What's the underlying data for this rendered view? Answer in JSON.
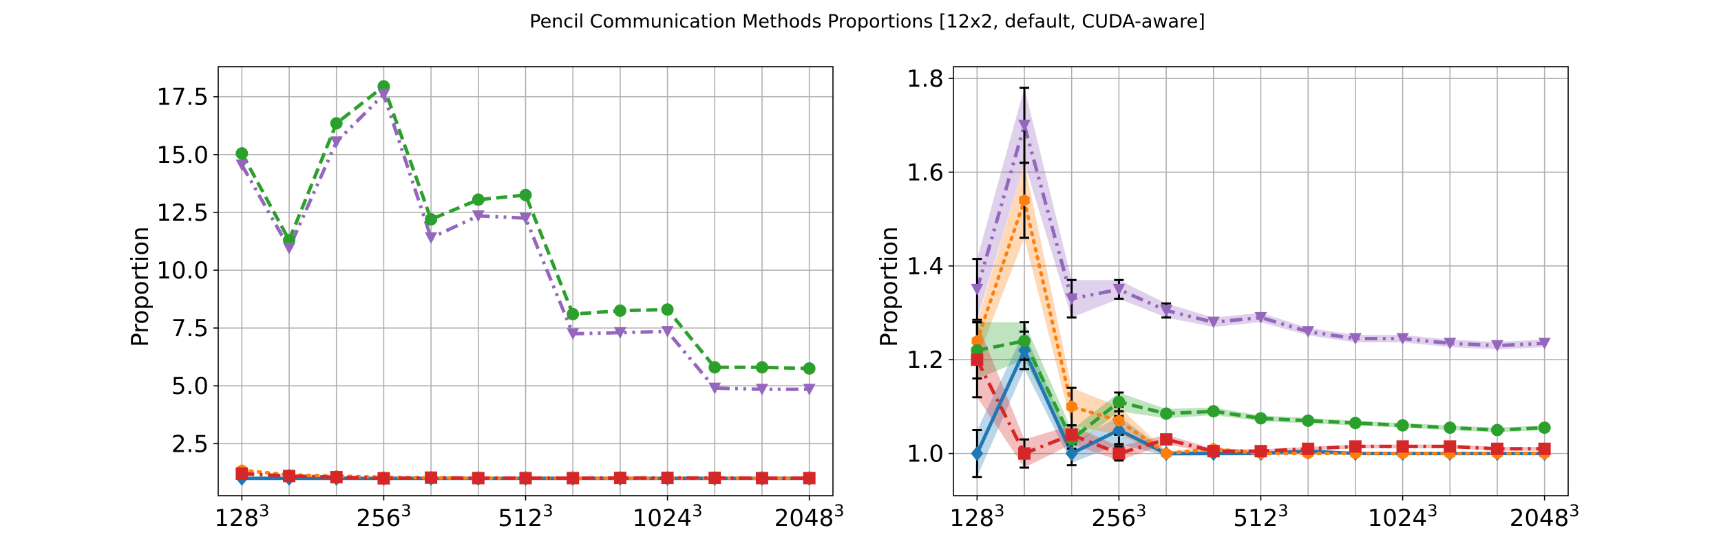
{
  "title": "Pencil Communication Methods Proportions [12x2, default, CUDA-aware]",
  "chart_data": [
    {
      "type": "line",
      "xlabel": "",
      "ylabel": "Proportion",
      "x": [
        1,
        2,
        3,
        4,
        5,
        6,
        7,
        8,
        9,
        10,
        11,
        12,
        13
      ],
      "x_ticks": [
        {
          "x": 1,
          "base": "128",
          "exp": "3"
        },
        {
          "x": 4,
          "base": "256",
          "exp": "3"
        },
        {
          "x": 7,
          "base": "512",
          "exp": "3"
        },
        {
          "x": 10,
          "base": "1024",
          "exp": "3"
        },
        {
          "x": 13,
          "base": "2048",
          "exp": "3"
        }
      ],
      "xlim": [
        0.5,
        13.5
      ],
      "ylim": [
        0.25,
        18.8
      ],
      "y_ticks": [
        "2.5",
        "5.0",
        "7.5",
        "10.0",
        "12.5",
        "15.0",
        "17.5"
      ],
      "grid": true,
      "series": [
        {
          "color": "#1f77b4",
          "linestyle": "solid",
          "marker": "diamond",
          "values": [
            1.0,
            1.0,
            1.0,
            1.0,
            1.0,
            1.0,
            1.0,
            1.0,
            1.0,
            1.0,
            1.0,
            1.0,
            1.0
          ]
        },
        {
          "color": "#ff7f0e",
          "linestyle": "dotted",
          "marker": "hexagon",
          "values": [
            1.35,
            1.15,
            1.1,
            1.05,
            1.02,
            1.01,
            1.0,
            1.0,
            1.0,
            1.0,
            1.0,
            1.0,
            1.0
          ]
        },
        {
          "color": "#2ca02c",
          "linestyle": "dashed",
          "marker": "circle",
          "values": [
            15.05,
            11.3,
            16.35,
            17.95,
            12.2,
            13.05,
            13.25,
            8.1,
            8.25,
            8.3,
            5.8,
            5.8,
            5.75
          ]
        },
        {
          "color": "#d62728",
          "linestyle": "dashdot",
          "marker": "square",
          "values": [
            1.2,
            1.1,
            1.05,
            1.0,
            1.03,
            1.01,
            1.01,
            1.01,
            1.02,
            1.02,
            1.02,
            1.01,
            1.01
          ]
        },
        {
          "color": "#9467bd",
          "linestyle": "dashdotdot",
          "marker": "triangle_down",
          "values": [
            14.55,
            10.95,
            15.55,
            17.6,
            11.4,
            12.35,
            12.25,
            7.25,
            7.3,
            7.35,
            4.9,
            4.85,
            4.85
          ]
        }
      ]
    },
    {
      "type": "line",
      "xlabel": "",
      "ylabel": "Proportion",
      "x": [
        1,
        2,
        3,
        4,
        5,
        6,
        7,
        8,
        9,
        10,
        11,
        12,
        13
      ],
      "x_ticks": [
        {
          "x": 1,
          "base": "128",
          "exp": "3"
        },
        {
          "x": 4,
          "base": "256",
          "exp": "3"
        },
        {
          "x": 7,
          "base": "512",
          "exp": "3"
        },
        {
          "x": 10,
          "base": "1024",
          "exp": "3"
        },
        {
          "x": 13,
          "base": "2048",
          "exp": "3"
        }
      ],
      "xlim": [
        0.5,
        13.5
      ],
      "ylim": [
        0.91,
        1.825
      ],
      "y_ticks": [
        "1.0",
        "1.2",
        "1.4",
        "1.6",
        "1.8"
      ],
      "grid": true,
      "series": [
        {
          "color": "#1f77b4",
          "linestyle": "solid",
          "marker": "diamond",
          "values": [
            1.0,
            1.22,
            1.0,
            1.05,
            1.0,
            1.0,
            1.0,
            1.005,
            1.0,
            1.0,
            1.0,
            1.0,
            1.0
          ],
          "band": [
            0.05,
            0.04,
            0.02,
            0.03,
            0.005,
            0.004,
            0.003,
            0.003,
            0.003,
            0.003,
            0.003,
            0.003,
            0.003
          ],
          "err": [
            0.05,
            0.04,
            0.025,
            0.03,
            0.005,
            0.004,
            0.003,
            0.003,
            0.003,
            0.003,
            0.003,
            0.003,
            0.003
          ]
        },
        {
          "color": "#ff7f0e",
          "linestyle": "dotted",
          "marker": "hexagon",
          "values": [
            1.24,
            1.54,
            1.1,
            1.07,
            1.0,
            1.01,
            1.0,
            1.0,
            1.0,
            1.0,
            1.0,
            1.0,
            1.0
          ],
          "band": [
            0.04,
            0.08,
            0.04,
            0.03,
            0.005,
            0.004,
            0.003,
            0.003,
            0.003,
            0.003,
            0.003,
            0.003,
            0.003
          ],
          "err": [
            0.04,
            0.08,
            0.04,
            0.03,
            0.005,
            0.004,
            0.003,
            0.003,
            0.003,
            0.003,
            0.003,
            0.003,
            0.003
          ]
        },
        {
          "color": "#2ca02c",
          "linestyle": "dashed",
          "marker": "circle",
          "values": [
            1.22,
            1.24,
            1.03,
            1.11,
            1.085,
            1.09,
            1.075,
            1.07,
            1.065,
            1.06,
            1.055,
            1.05,
            1.055
          ],
          "band": [
            0.06,
            0.04,
            0.02,
            0.02,
            0.01,
            0.008,
            0.006,
            0.006,
            0.005,
            0.005,
            0.005,
            0.005,
            0.005
          ],
          "err": [
            0.06,
            0.04,
            0.02,
            0.02,
            0.01,
            0.008,
            0.006,
            0.006,
            0.005,
            0.005,
            0.005,
            0.005,
            0.005
          ]
        },
        {
          "color": "#d62728",
          "linestyle": "dashdot",
          "marker": "square",
          "values": [
            1.2,
            1.0,
            1.04,
            1.0,
            1.03,
            1.005,
            1.005,
            1.01,
            1.015,
            1.015,
            1.015,
            1.01,
            1.01
          ],
          "band": [
            0.08,
            0.03,
            0.02,
            0.015,
            0.01,
            0.005,
            0.004,
            0.004,
            0.004,
            0.004,
            0.004,
            0.004,
            0.004
          ],
          "err": [
            0.08,
            0.03,
            0.02,
            0.015,
            0.01,
            0.005,
            0.004,
            0.004,
            0.004,
            0.004,
            0.004,
            0.004,
            0.004
          ]
        },
        {
          "color": "#9467bd",
          "linestyle": "dashdotdot",
          "marker": "triangle_down",
          "values": [
            1.35,
            1.7,
            1.33,
            1.35,
            1.305,
            1.28,
            1.29,
            1.26,
            1.245,
            1.245,
            1.235,
            1.23,
            1.235
          ],
          "band": [
            0.065,
            0.08,
            0.04,
            0.02,
            0.015,
            0.01,
            0.01,
            0.008,
            0.008,
            0.008,
            0.008,
            0.008,
            0.008
          ],
          "err": [
            0.065,
            0.08,
            0.04,
            0.02,
            0.015,
            0.01,
            0.01,
            0.008,
            0.008,
            0.008,
            0.008,
            0.008,
            0.008
          ]
        }
      ]
    }
  ]
}
